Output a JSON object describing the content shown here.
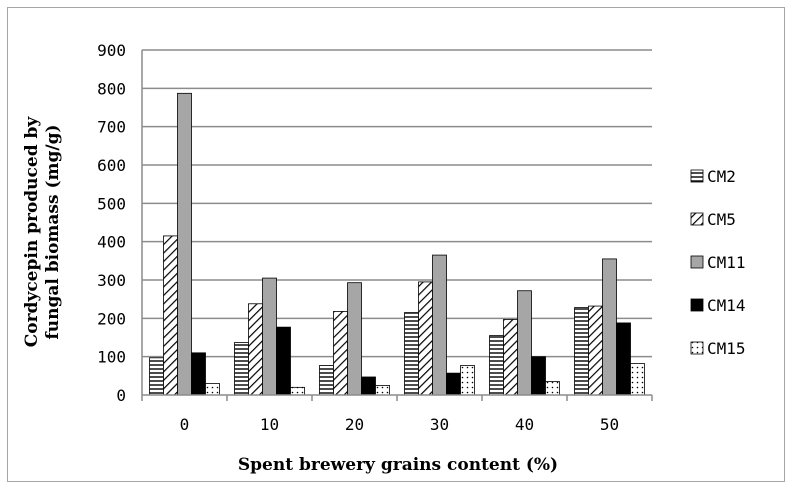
{
  "chart_data": {
    "type": "bar",
    "xlabel": "Spent brewery grains content (%)",
    "ylabel_lines": [
      "Cordycepin produced by",
      "fungal biomass (mg/g)"
    ],
    "categories": [
      "0",
      "10",
      "20",
      "30",
      "40",
      "50"
    ],
    "ylim": [
      0,
      900
    ],
    "yticks": [
      "0",
      "100",
      "200",
      "300",
      "400",
      "500",
      "600",
      "700",
      "800",
      "900"
    ],
    "grid": true,
    "legend_position": "right",
    "series": [
      {
        "name": "CM2",
        "pattern": "hlines",
        "values": [
          97,
          137,
          77,
          215,
          155,
          228
        ]
      },
      {
        "name": "CM5",
        "pattern": "diagonal",
        "values": [
          415,
          238,
          218,
          295,
          197,
          232
        ]
      },
      {
        "name": "CM11",
        "pattern": "gray",
        "values": [
          787,
          305,
          293,
          365,
          272,
          355
        ]
      },
      {
        "name": "CM14",
        "pattern": "black",
        "values": [
          110,
          177,
          47,
          57,
          100,
          188
        ]
      },
      {
        "name": "CM15",
        "pattern": "dots",
        "values": [
          30,
          20,
          25,
          77,
          35,
          82
        ]
      }
    ],
    "colors": {
      "gray_fill": "#a6a6a6",
      "grid": "#8c8c8c",
      "frame": "#a6a6a6"
    }
  }
}
